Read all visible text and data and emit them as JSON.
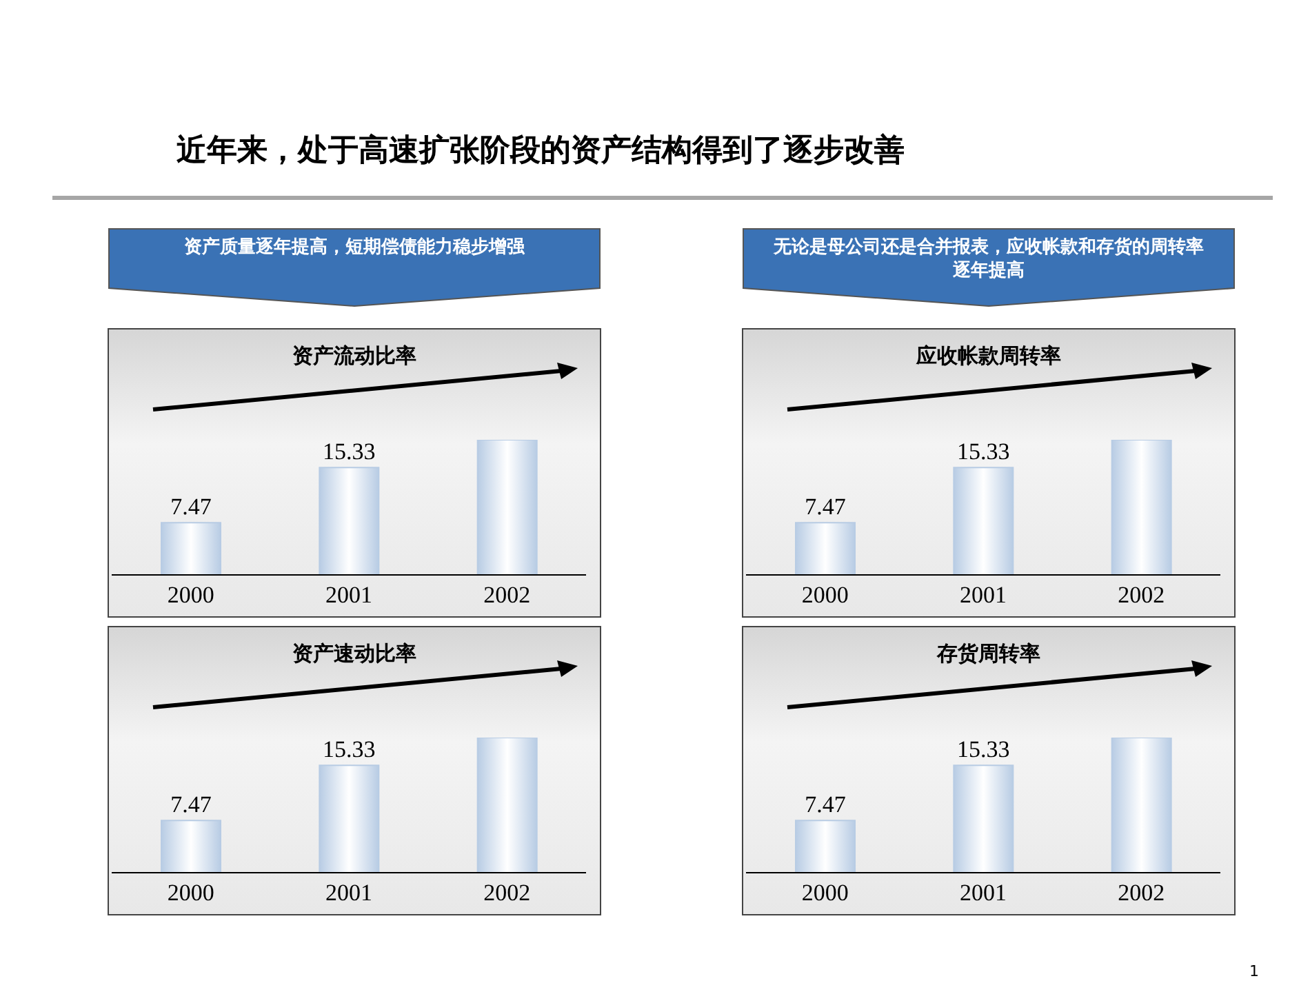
{
  "chart_data": [
    {
      "type": "bar",
      "title": "资产流动比率",
      "categories": [
        "2000",
        "2001",
        "2002"
      ],
      "values": [
        7.47,
        15.33,
        19.3
      ],
      "value_labels": [
        "7.47",
        "15.33",
        null
      ],
      "color": "#b8cce4",
      "annotations": [
        "近年来，处于高速扩张阶段的资产结构得到了逐步改善",
        "资产质量逐年提高，短期偿债能力稳步增强"
      ]
    },
    {
      "type": "bar",
      "title": "应收帐款周转率",
      "categories": [
        "2000",
        "2001",
        "2002"
      ],
      "values": [
        7.47,
        15.33,
        19.3
      ],
      "value_labels": [
        "7.47",
        "15.33",
        null
      ],
      "color": "#b8cce4",
      "annotations": [
        "无论是母公司还是合并报表，应收帐款和存货的周转率逐年提高"
      ]
    },
    {
      "type": "bar",
      "title": "资产速动比率",
      "categories": [
        "2000",
        "2001",
        "2002"
      ],
      "values": [
        7.47,
        15.33,
        19.3
      ],
      "value_labels": [
        "7.47",
        "15.33",
        null
      ],
      "color": "#b8cce4"
    },
    {
      "type": "bar",
      "title": "存货周转率",
      "categories": [
        "2000",
        "2001",
        "2002"
      ],
      "values": [
        7.47,
        15.33,
        19.3
      ],
      "value_labels": [
        "7.47",
        "15.33",
        null
      ],
      "color": "#b8cce4",
      "annotations": [
        "1"
      ]
    }
  ]
}
